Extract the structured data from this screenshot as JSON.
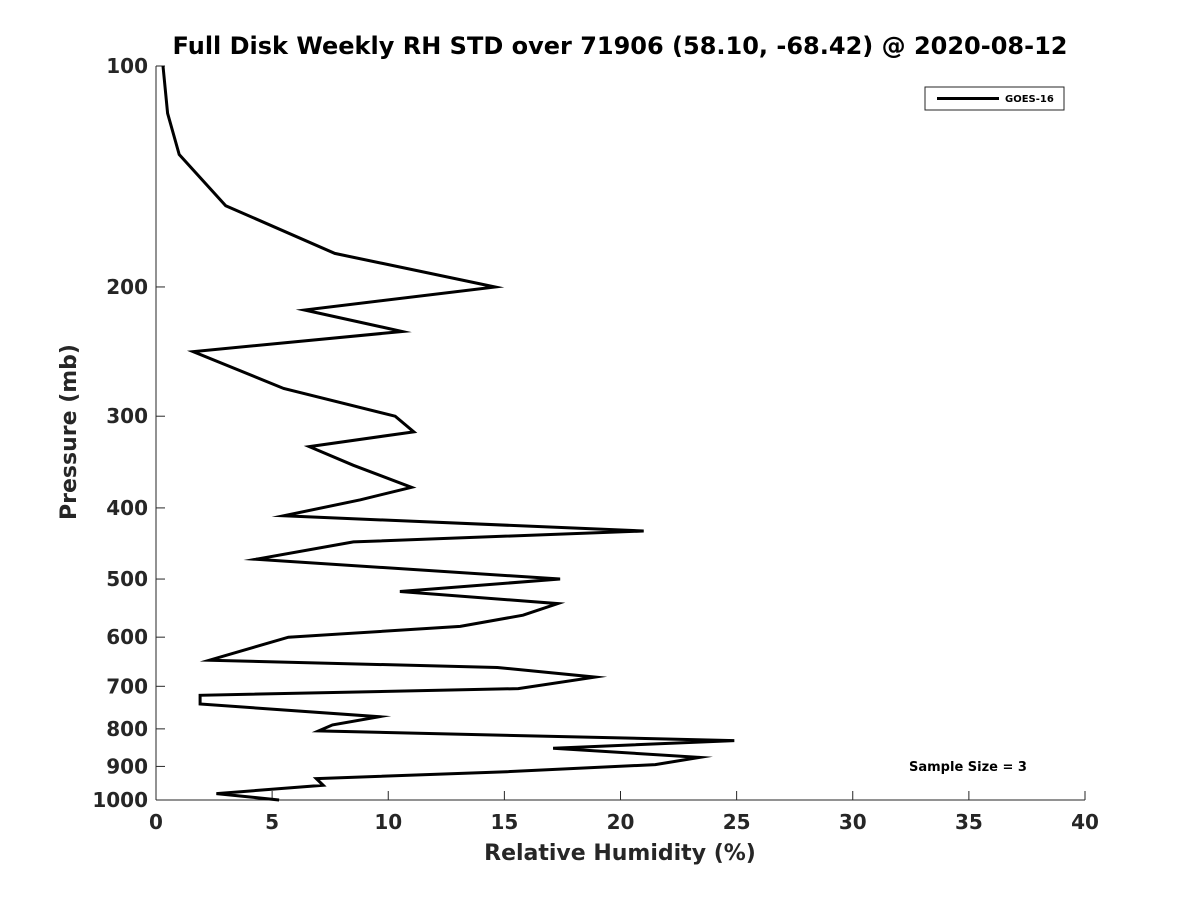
{
  "chart_data": {
    "type": "line",
    "title": "Full Disk Weekly RH STD over 71906 (58.10, -68.42) @ 2020-08-12",
    "xlabel": "Relative Humidity (%)",
    "ylabel": "Pressure (mb)",
    "xlim": [
      0,
      40
    ],
    "ylim": [
      100,
      1000
    ],
    "yscale": "log",
    "y_reversed": true,
    "xticks": [
      0,
      5,
      10,
      15,
      20,
      25,
      30,
      35,
      40
    ],
    "yticks": [
      100,
      200,
      300,
      400,
      500,
      600,
      700,
      800,
      900,
      1000
    ],
    "grid": false,
    "legend_position": "top-right",
    "line_color": "#000000",
    "series": [
      {
        "name": "GOES-16",
        "x": [
          0.3,
          0.5,
          1.0,
          3.0,
          7.7,
          14.6,
          6.4,
          10.6,
          1.6,
          5.5,
          10.3,
          11.1,
          6.6,
          8.5,
          11.0,
          8.8,
          5.5,
          21.0,
          8.5,
          4.3,
          17.4,
          10.5,
          17.3,
          15.8,
          13.1,
          5.7,
          2.3,
          14.7,
          18.9,
          15.6,
          1.9,
          1.9,
          9.6,
          7.6,
          7.0,
          24.9,
          17.1,
          23.4,
          21.5,
          15.1,
          6.9,
          7.2,
          2.6,
          5.3
        ],
        "y": [
          100,
          116,
          132,
          155,
          180,
          200,
          215,
          230,
          245,
          275,
          300,
          315,
          330,
          350,
          375,
          390,
          410,
          430,
          445,
          470,
          500,
          520,
          540,
          560,
          580,
          600,
          645,
          660,
          680,
          705,
          720,
          740,
          770,
          790,
          805,
          830,
          850,
          875,
          895,
          915,
          935,
          955,
          980,
          1000
        ]
      }
    ],
    "annotations": [
      "Sample Size = 3"
    ]
  }
}
